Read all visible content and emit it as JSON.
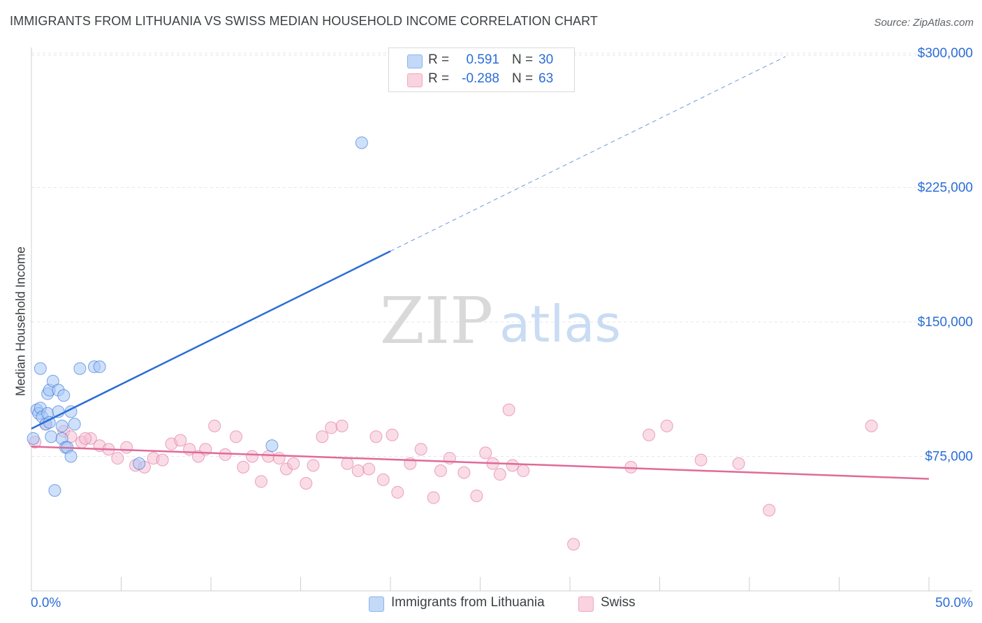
{
  "header": {
    "title": "IMMIGRANTS FROM LITHUANIA VS SWISS MEDIAN HOUSEHOLD INCOME CORRELATION CHART",
    "source": "Source: ZipAtlas.com"
  },
  "watermark": {
    "zip": "ZIP",
    "atlas": "atlas"
  },
  "legend_stats": [
    {
      "r_label": "R =",
      "r_value": "0.591",
      "n_label": "N =",
      "n_value": "30",
      "color": "#8ab4f0"
    },
    {
      "r_label": "R =",
      "r_value": "-0.288",
      "n_label": "N =",
      "n_value": "63",
      "color": "#f4a7c0"
    }
  ],
  "bottom_legend": [
    {
      "label": "Immigrants from Lithuania",
      "color": "#8ab4f0"
    },
    {
      "label": "Swiss",
      "color": "#f4a7c0"
    }
  ],
  "chart_data": {
    "type": "scatter",
    "title": "IMMIGRANTS FROM LITHUANIA VS SWISS MEDIAN HOUSEHOLD INCOME CORRELATION CHART",
    "xlabel": "",
    "ylabel": "Median Household Income",
    "xlim": [
      0,
      50
    ],
    "ylim": [
      0,
      310000
    ],
    "x_tick_labels": [
      "0.0%",
      "50.0%"
    ],
    "y_ticks": [
      75000,
      150000,
      225000,
      300000
    ],
    "y_tick_labels": [
      "$75,000",
      "$150,000",
      "$225,000",
      "$300,000"
    ],
    "grid": true,
    "legend_position": "top-center",
    "series": [
      {
        "name": "Immigrants from Lithuania",
        "color": "#2a6dd6",
        "fill": "#a8c8f5",
        "r": 0.591,
        "n": 30,
        "trend": {
          "x0": 0.0,
          "y0": 90500,
          "x1": 20.0,
          "y1": 189500,
          "dashed_to_x": 42.0,
          "dashed_to_y": 298000
        },
        "points": [
          [
            0.1,
            85000
          ],
          [
            0.3,
            101000
          ],
          [
            0.4,
            99000
          ],
          [
            0.5,
            102000
          ],
          [
            0.5,
            124000
          ],
          [
            0.6,
            97000
          ],
          [
            0.8,
            93000
          ],
          [
            0.9,
            99000
          ],
          [
            0.9,
            110000
          ],
          [
            1.0,
            112000
          ],
          [
            1.2,
            117000
          ],
          [
            1.1,
            86000
          ],
          [
            1.3,
            56000
          ],
          [
            1.5,
            100000
          ],
          [
            1.5,
            112000
          ],
          [
            1.7,
            85000
          ],
          [
            1.7,
            92000
          ],
          [
            1.8,
            109000
          ],
          [
            1.9,
            80000
          ],
          [
            2.0,
            80000
          ],
          [
            2.2,
            100000
          ],
          [
            2.2,
            75000
          ],
          [
            2.4,
            93000
          ],
          [
            2.7,
            124000
          ],
          [
            3.5,
            125000
          ],
          [
            3.8,
            125000
          ],
          [
            6.0,
            71000
          ],
          [
            13.4,
            81000
          ],
          [
            18.4,
            250000
          ],
          [
            1.0,
            94000
          ]
        ]
      },
      {
        "name": "Swiss",
        "color": "#e06a97",
        "fill": "#f6bfd2",
        "r": -0.288,
        "n": 63,
        "trend": {
          "x0": 0.0,
          "y0": 80500,
          "x1": 50.0,
          "y1": 62500
        },
        "points": [
          [
            0.2,
            83000
          ],
          [
            0.8,
            93000
          ],
          [
            1.8,
            89000
          ],
          [
            2.2,
            86000
          ],
          [
            2.8,
            83000
          ],
          [
            3.3,
            85000
          ],
          [
            3.8,
            81000
          ],
          [
            4.3,
            79000
          ],
          [
            4.8,
            74000
          ],
          [
            5.3,
            80000
          ],
          [
            5.8,
            70000
          ],
          [
            6.3,
            69000
          ],
          [
            6.8,
            74000
          ],
          [
            7.3,
            73000
          ],
          [
            7.8,
            82000
          ],
          [
            8.3,
            84000
          ],
          [
            8.8,
            79000
          ],
          [
            9.3,
            75000
          ],
          [
            9.7,
            79000
          ],
          [
            10.2,
            92000
          ],
          [
            10.8,
            76000
          ],
          [
            11.4,
            86000
          ],
          [
            11.8,
            69000
          ],
          [
            12.3,
            75000
          ],
          [
            12.8,
            61000
          ],
          [
            13.2,
            75000
          ],
          [
            13.8,
            74000
          ],
          [
            14.2,
            68000
          ],
          [
            14.6,
            71000
          ],
          [
            15.3,
            60000
          ],
          [
            15.7,
            70000
          ],
          [
            16.2,
            86000
          ],
          [
            16.7,
            91000
          ],
          [
            17.3,
            92000
          ],
          [
            17.6,
            71000
          ],
          [
            18.2,
            67000
          ],
          [
            18.8,
            68000
          ],
          [
            19.2,
            86000
          ],
          [
            19.6,
            62000
          ],
          [
            20.1,
            87000
          ],
          [
            20.4,
            55000
          ],
          [
            21.1,
            71000
          ],
          [
            21.7,
            79000
          ],
          [
            22.4,
            52000
          ],
          [
            22.8,
            67000
          ],
          [
            23.3,
            74000
          ],
          [
            24.1,
            66000
          ],
          [
            24.8,
            53000
          ],
          [
            25.3,
            77000
          ],
          [
            25.7,
            71000
          ],
          [
            26.1,
            65000
          ],
          [
            26.6,
            101000
          ],
          [
            26.8,
            70000
          ],
          [
            27.4,
            67000
          ],
          [
            30.2,
            26000
          ],
          [
            33.4,
            69000
          ],
          [
            34.4,
            87000
          ],
          [
            35.4,
            92000
          ],
          [
            37.3,
            73000
          ],
          [
            39.4,
            71000
          ],
          [
            41.1,
            45000
          ],
          [
            46.8,
            92000
          ],
          [
            3.0,
            85000
          ]
        ]
      }
    ]
  }
}
